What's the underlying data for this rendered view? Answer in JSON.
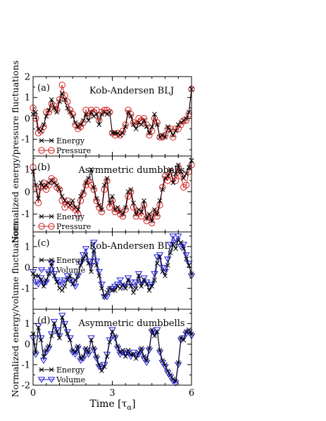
{
  "figure": {
    "xlabel_main": "Time [τ",
    "xlabel_sub": "α",
    "xlabel_end": "]",
    "ylabel_top": "Normalized energy/pressure fluctuations",
    "ylabel_bottom": "Normalized energy/volume fluctuations"
  },
  "chart_data": [
    {
      "type": "line",
      "panel_label": "(a)",
      "title": "Kob-Andersen BLJ",
      "x_range": [
        0,
        6
      ],
      "ylim": [
        -1.8,
        2
      ],
      "yticks": [
        -1,
        0,
        1,
        2
      ],
      "legend_position": "bottom-left",
      "series": [
        {
          "name": "Energy",
          "marker": "x",
          "color": "#000000",
          "x": [
            0,
            0.1,
            0.2,
            0.3,
            0.4,
            0.5,
            0.6,
            0.7,
            0.8,
            0.9,
            1.0,
            1.1,
            1.2,
            1.3,
            1.4,
            1.5,
            1.6,
            1.7,
            1.8,
            1.9,
            2.0,
            2.1,
            2.2,
            2.3,
            2.4,
            2.5,
            2.6,
            2.7,
            2.8,
            2.9,
            3.0,
            3.1,
            3.2,
            3.3,
            3.4,
            3.5,
            3.6,
            3.7,
            3.8,
            3.9,
            4.0,
            4.1,
            4.2,
            4.3,
            4.4,
            4.5,
            4.6,
            4.7,
            4.8,
            4.9,
            5.0,
            5.1,
            5.2,
            5.3,
            5.4,
            5.5,
            5.6,
            5.7,
            5.8,
            5.9,
            6.0
          ],
          "y": [
            0.2,
            0.3,
            -0.5,
            -0.6,
            -0.3,
            0.1,
            0.4,
            0.9,
            0.5,
            0.3,
            0.8,
            1.2,
            0.9,
            0.5,
            0.3,
            0.1,
            -0.2,
            -0.4,
            -0.3,
            -0.1,
            0.2,
            -0.1,
            0.3,
            0.1,
            0.2,
            -0.3,
            0.2,
            0.3,
            0.2,
            0.3,
            -0.7,
            -0.7,
            -0.7,
            -0.8,
            -0.7,
            -0.4,
            0.3,
            0.1,
            -0.3,
            -0.5,
            -0.2,
            -0.3,
            -0.1,
            -0.4,
            -0.7,
            -0.4,
            0.2,
            -0.3,
            -0.9,
            -0.8,
            -0.9,
            -0.4,
            -0.6,
            -0.8,
            -0.6,
            -0.3,
            -0.2,
            -0.1,
            0.0,
            0.3,
            1.4
          ]
        },
        {
          "name": "Pressure",
          "marker": "o",
          "color": "#d62020",
          "x": [
            0,
            0.1,
            0.2,
            0.3,
            0.4,
            0.5,
            0.6,
            0.7,
            0.8,
            0.9,
            1.0,
            1.1,
            1.2,
            1.3,
            1.4,
            1.5,
            1.6,
            1.7,
            1.8,
            1.9,
            2.0,
            2.1,
            2.2,
            2.3,
            2.4,
            2.5,
            2.6,
            2.7,
            2.8,
            2.9,
            3.0,
            3.1,
            3.2,
            3.3,
            3.4,
            3.5,
            3.6,
            3.7,
            3.8,
            3.9,
            4.0,
            4.1,
            4.2,
            4.3,
            4.4,
            4.5,
            4.6,
            4.7,
            4.8,
            4.9,
            5.0,
            5.1,
            5.2,
            5.3,
            5.4,
            5.5,
            5.6,
            5.7,
            5.8,
            5.9,
            6.0
          ],
          "y": [
            0.5,
            0.0,
            -0.7,
            -0.6,
            -0.4,
            0.3,
            0.3,
            0.7,
            0.6,
            0.4,
            0.9,
            1.6,
            1.1,
            0.8,
            0.4,
            0.2,
            -0.3,
            -0.5,
            -0.4,
            -0.2,
            0.4,
            0.1,
            0.4,
            0.3,
            0.4,
            -0.1,
            0.3,
            0.4,
            0.4,
            0.3,
            -0.7,
            -0.8,
            -0.7,
            -0.8,
            -0.6,
            -0.3,
            0.4,
            0.2,
            -0.2,
            -0.3,
            0.0,
            -0.1,
            0.0,
            -0.3,
            -0.8,
            -0.6,
            0.0,
            -0.2,
            -0.9,
            -0.9,
            -0.8,
            -0.5,
            -0.5,
            -0.9,
            -0.5,
            -0.5,
            -0.3,
            -0.1,
            -0.1,
            0.2,
            1.4
          ]
        }
      ]
    },
    {
      "type": "line",
      "panel_label": "(b)",
      "title": "Asymmetric dumbbells",
      "x_range": [
        0,
        6
      ],
      "ylim": [
        -1.8,
        1.6
      ],
      "yticks": [
        -1,
        0,
        1
      ],
      "legend_position": "bottom-left",
      "series": [
        {
          "name": "Energy",
          "marker": "x",
          "color": "#000000",
          "x": [
            0,
            0.1,
            0.2,
            0.3,
            0.4,
            0.5,
            0.6,
            0.7,
            0.8,
            0.9,
            1.0,
            1.1,
            1.2,
            1.3,
            1.4,
            1.5,
            1.6,
            1.7,
            1.8,
            1.9,
            2.0,
            2.1,
            2.2,
            2.3,
            2.4,
            2.5,
            2.6,
            2.7,
            2.8,
            2.9,
            3.0,
            3.1,
            3.2,
            3.3,
            3.4,
            3.5,
            3.6,
            3.7,
            3.8,
            3.9,
            4.0,
            4.1,
            4.2,
            4.3,
            4.4,
            4.5,
            4.6,
            4.7,
            4.8,
            4.9,
            5.0,
            5.1,
            5.2,
            5.3,
            5.4,
            5.5,
            5.6,
            5.7,
            5.8,
            5.9,
            6.0
          ],
          "y": [
            0.9,
            0.3,
            -0.3,
            0.4,
            0.2,
            0.3,
            0.4,
            0.5,
            0.4,
            0.3,
            0.1,
            -0.2,
            -0.4,
            -0.5,
            -0.6,
            -0.4,
            -0.7,
            -0.8,
            -0.2,
            0.0,
            0.4,
            0.6,
            1.0,
            0.2,
            -0.3,
            -0.6,
            -0.8,
            0.3,
            0.6,
            -0.5,
            -0.2,
            -0.8,
            -0.7,
            -0.9,
            -1.0,
            -0.7,
            0.0,
            0.1,
            -0.5,
            -1.0,
            -0.8,
            -0.9,
            -0.4,
            -1.2,
            -1.0,
            -1.3,
            -0.8,
            -1.0,
            -0.4,
            0.1,
            0.6,
            0.7,
            1.0,
            0.4,
            0.8,
            1.2,
            0.9,
            0.6,
            0.8,
            1.1,
            1.4
          ]
        },
        {
          "name": "Pressure",
          "marker": "o",
          "color": "#d62020",
          "x": [
            0,
            0.1,
            0.2,
            0.3,
            0.4,
            0.5,
            0.6,
            0.7,
            0.8,
            0.9,
            1.0,
            1.1,
            1.2,
            1.3,
            1.4,
            1.5,
            1.6,
            1.7,
            1.8,
            1.9,
            2.0,
            2.1,
            2.2,
            2.3,
            2.4,
            2.5,
            2.6,
            2.7,
            2.8,
            2.9,
            3.0,
            3.1,
            3.2,
            3.3,
            3.4,
            3.5,
            3.6,
            3.7,
            3.8,
            3.9,
            4.0,
            4.1,
            4.2,
            4.3,
            4.4,
            4.5,
            4.6,
            4.7,
            4.8,
            4.9,
            5.0,
            5.1,
            5.2,
            5.3,
            5.4,
            5.5,
            5.6,
            5.7,
            5.8,
            5.9,
            6.0
          ],
          "y": [
            1.1,
            0.2,
            -0.5,
            0.2,
            0.4,
            0.1,
            0.3,
            0.6,
            0.5,
            0.2,
            0.1,
            -0.4,
            -0.7,
            -0.4,
            -0.6,
            -0.7,
            -0.8,
            -1.0,
            -0.4,
            -0.1,
            0.3,
            0.5,
            0.3,
            0.1,
            -0.4,
            -0.7,
            -0.9,
            0.1,
            0.5,
            -0.7,
            -0.4,
            -0.9,
            -0.8,
            -1.0,
            -1.1,
            -0.8,
            -0.2,
            0.0,
            -0.7,
            -1.1,
            -0.9,
            -1.1,
            -0.6,
            -1.3,
            -1.1,
            -1.4,
            -0.9,
            -1.1,
            -0.6,
            0.2,
            0.7,
            0.5,
            0.9,
            0.6,
            0.5,
            1.1,
            0.7,
            0.2,
            0.3,
            0.9,
            1.2
          ]
        }
      ]
    },
    {
      "type": "line",
      "panel_label": "(c)",
      "title": "Kob-Andersen BLJ",
      "x_range": [
        0,
        6
      ],
      "ylim": [
        -2,
        1.7
      ],
      "yticks": [
        -1,
        0,
        1
      ],
      "legend_position": "top-left",
      "series": [
        {
          "name": "Energy",
          "marker": "x",
          "color": "#000000",
          "x": [
            0,
            0.1,
            0.2,
            0.3,
            0.4,
            0.5,
            0.6,
            0.7,
            0.8,
            0.9,
            1.0,
            1.1,
            1.2,
            1.3,
            1.4,
            1.5,
            1.6,
            1.7,
            1.8,
            1.9,
            2.0,
            2.1,
            2.2,
            2.3,
            2.4,
            2.5,
            2.6,
            2.7,
            2.8,
            2.9,
            3.0,
            3.1,
            3.2,
            3.3,
            3.4,
            3.5,
            3.6,
            3.7,
            3.8,
            3.9,
            4.0,
            4.1,
            4.2,
            4.3,
            4.4,
            4.5,
            4.6,
            4.7,
            4.8,
            4.9,
            5.0,
            5.1,
            5.2,
            5.3,
            5.4,
            5.5,
            5.6,
            5.7,
            5.8,
            5.9,
            6.0
          ],
          "y": [
            -0.3,
            -0.4,
            -0.4,
            -0.6,
            -0.9,
            -0.6,
            -0.3,
            0.2,
            -0.4,
            -0.7,
            -1.0,
            -1.1,
            -0.9,
            -0.6,
            -0.4,
            -0.8,
            -0.6,
            -0.4,
            0.1,
            0.4,
            0.6,
            0.2,
            -0.2,
            0.8,
            0.1,
            -0.4,
            -1.0,
            -1.4,
            -1.2,
            -1.0,
            -1.1,
            -1.1,
            -0.9,
            -1.0,
            -0.8,
            -1.0,
            -0.6,
            -0.9,
            -1.2,
            -1.0,
            -0.4,
            -0.9,
            -0.6,
            -0.8,
            -1.1,
            -0.9,
            -0.6,
            0.2,
            0.5,
            -0.2,
            -0.4,
            0.1,
            0.7,
            1.1,
            0.9,
            1.3,
            1.2,
            0.9,
            0.4,
            0.1,
            -0.3
          ]
        },
        {
          "name": "Volume",
          "marker": "v",
          "color": "#2020d8",
          "x": [
            0,
            0.1,
            0.2,
            0.3,
            0.4,
            0.5,
            0.6,
            0.7,
            0.8,
            0.9,
            1.0,
            1.1,
            1.2,
            1.3,
            1.4,
            1.5,
            1.6,
            1.7,
            1.8,
            1.9,
            2.0,
            2.1,
            2.2,
            2.3,
            2.4,
            2.5,
            2.6,
            2.7,
            2.8,
            2.9,
            3.0,
            3.1,
            3.2,
            3.3,
            3.4,
            3.5,
            3.6,
            3.7,
            3.8,
            3.9,
            4.0,
            4.1,
            4.2,
            4.3,
            4.4,
            4.5,
            4.6,
            4.7,
            4.8,
            4.9,
            5.0,
            5.1,
            5.2,
            5.3,
            5.4,
            5.5,
            5.6,
            5.7,
            5.8,
            5.9,
            6.0
          ],
          "y": [
            -0.2,
            -0.7,
            -0.8,
            -0.5,
            -0.8,
            -0.7,
            -0.3,
            0.2,
            -0.3,
            -0.6,
            -0.7,
            -0.8,
            -0.6,
            -0.4,
            -0.6,
            -0.7,
            -0.9,
            -0.4,
            0.2,
            0.6,
            0.9,
            0.3,
            0.1,
            1.2,
            0.3,
            -0.2,
            -0.8,
            -1.4,
            -1.4,
            -1.1,
            -1.0,
            -0.9,
            -0.8,
            -0.6,
            -0.9,
            -0.9,
            -0.5,
            -0.7,
            -0.9,
            -0.7,
            -0.3,
            -0.8,
            -0.5,
            -0.7,
            -0.9,
            -0.8,
            -0.3,
            0.5,
            0.6,
            0.0,
            -0.2,
            0.4,
            1.1,
            1.5,
            1.2,
            1.5,
            1.0,
            1.1,
            0.6,
            0.2,
            -0.4
          ]
        }
      ]
    },
    {
      "type": "line",
      "panel_label": "(d)",
      "title": "Asymmetric dumbbells",
      "x_range": [
        0,
        6
      ],
      "ylim": [
        -2,
        1.7
      ],
      "yticks": [
        -2,
        -1,
        0,
        1
      ],
      "legend_position": "bottom-left",
      "series": [
        {
          "name": "Energy",
          "marker": "x",
          "color": "#000000",
          "x": [
            0,
            0.1,
            0.2,
            0.3,
            0.4,
            0.5,
            0.6,
            0.7,
            0.8,
            0.9,
            1.0,
            1.1,
            1.2,
            1.3,
            1.4,
            1.5,
            1.6,
            1.7,
            1.8,
            1.9,
            2.0,
            2.1,
            2.2,
            2.3,
            2.4,
            2.5,
            2.6,
            2.7,
            2.8,
            2.9,
            3.0,
            3.1,
            3.2,
            3.3,
            3.4,
            3.5,
            3.6,
            3.7,
            3.8,
            3.9,
            4.0,
            4.1,
            4.2,
            4.3,
            4.4,
            4.5,
            4.6,
            4.7,
            4.8,
            4.9,
            5.0,
            5.1,
            5.2,
            5.3,
            5.4,
            5.5,
            5.6,
            5.7,
            5.8,
            5.9,
            6.0
          ],
          "y": [
            0.5,
            -0.4,
            0.8,
            0.2,
            -0.6,
            -0.3,
            -0.1,
            0.4,
            1.0,
            0.6,
            0.3,
            1.3,
            0.9,
            0.5,
            0.2,
            -0.3,
            -0.4,
            -0.1,
            -0.7,
            -0.6,
            -0.2,
            -0.4,
            0.2,
            -0.2,
            -0.6,
            -1.0,
            -1.3,
            -1.1,
            -0.6,
            0.1,
            0.6,
            0.4,
            -0.1,
            -0.4,
            -0.3,
            -0.6,
            -0.3,
            -0.5,
            -0.5,
            -0.7,
            -0.4,
            -0.2,
            -0.6,
            -0.8,
            -0.2,
            0.7,
            0.4,
            0.6,
            -0.3,
            -0.8,
            -1.0,
            -1.3,
            -1.5,
            -1.7,
            -1.8,
            -0.9,
            0.3,
            0.2,
            0.6,
            0.7,
            0.5
          ]
        },
        {
          "name": "Volume",
          "marker": "v",
          "color": "#2020d8",
          "x": [
            0,
            0.1,
            0.2,
            0.3,
            0.4,
            0.5,
            0.6,
            0.7,
            0.8,
            0.9,
            1.0,
            1.1,
            1.2,
            1.3,
            1.4,
            1.5,
            1.6,
            1.7,
            1.8,
            1.9,
            2.0,
            2.1,
            2.2,
            2.3,
            2.4,
            2.5,
            2.6,
            2.7,
            2.8,
            2.9,
            3.0,
            3.1,
            3.2,
            3.3,
            3.4,
            3.5,
            3.6,
            3.7,
            3.8,
            3.9,
            4.0,
            4.1,
            4.2,
            4.3,
            4.4,
            4.5,
            4.6,
            4.7,
            4.8,
            4.9,
            5.0,
            5.1,
            5.2,
            5.3,
            5.4,
            5.5,
            5.6,
            5.7,
            5.8,
            5.9,
            6.0
          ],
          "y": [
            0.3,
            -0.5,
            0.9,
            0.3,
            -0.8,
            -0.4,
            -0.2,
            0.5,
            1.1,
            0.7,
            0.4,
            1.4,
            1.0,
            0.6,
            0.3,
            -0.4,
            -0.5,
            -0.2,
            -0.8,
            -0.7,
            -0.3,
            -0.5,
            0.3,
            -0.3,
            -0.7,
            -1.1,
            -1.2,
            -1.0,
            -0.5,
            0.2,
            0.7,
            0.3,
            -0.2,
            -0.5,
            -0.4,
            -0.5,
            -0.4,
            -0.6,
            -0.4,
            -0.6,
            -0.5,
            -0.3,
            -0.7,
            -0.9,
            -0.3,
            0.6,
            0.5,
            0.7,
            -0.4,
            -0.9,
            -1.1,
            -1.4,
            -1.6,
            -1.8,
            -1.9,
            -1.0,
            0.2,
            0.3,
            0.5,
            0.6,
            0.4
          ]
        }
      ]
    }
  ],
  "xaxis": {
    "ticks": [
      0,
      3,
      6
    ],
    "tick_labels": [
      "0",
      "3",
      "6"
    ]
  }
}
